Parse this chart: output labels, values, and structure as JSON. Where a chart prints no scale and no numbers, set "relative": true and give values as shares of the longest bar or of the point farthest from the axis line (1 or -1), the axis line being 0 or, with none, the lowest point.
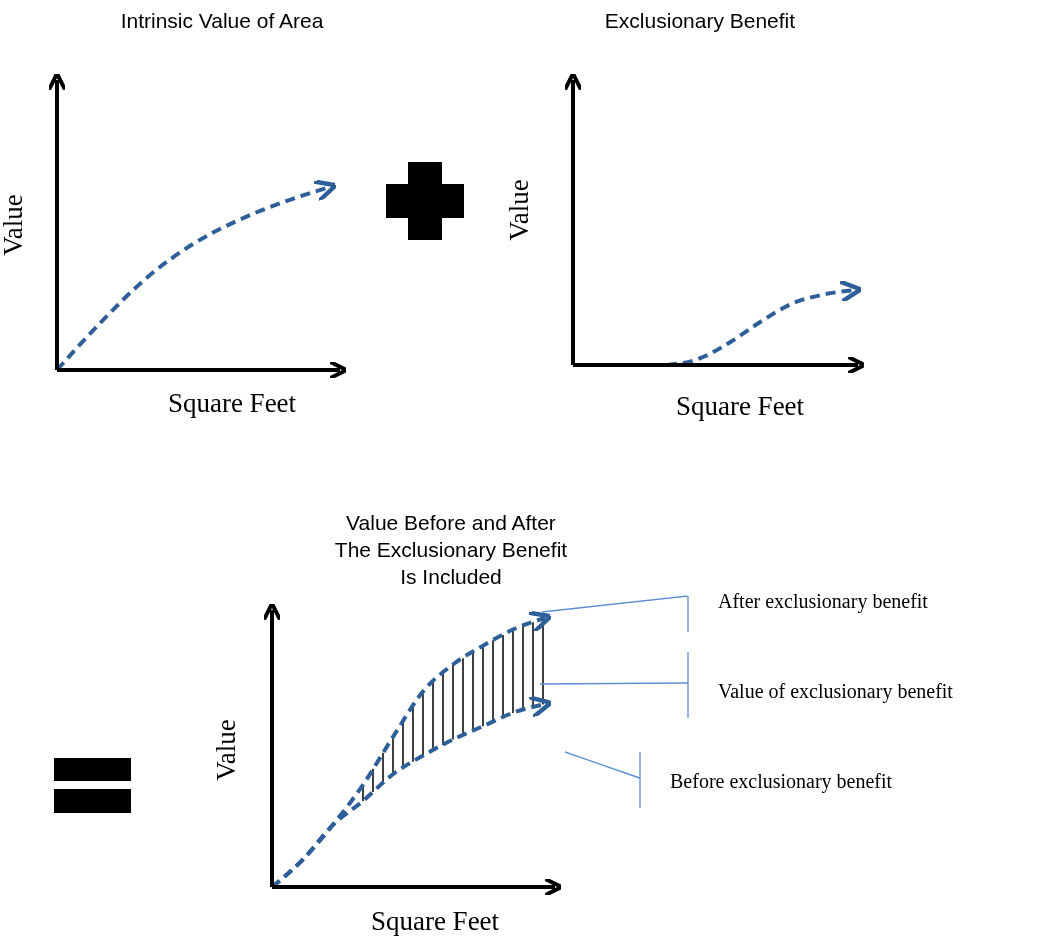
{
  "chart_data": [
    {
      "type": "line",
      "title": "Intrinsic Value of Area",
      "xlabel": "Square Feet",
      "ylabel": "Value",
      "relative": true,
      "line_style": "dashed",
      "marker": "none",
      "categories": [
        null,
        null,
        null,
        null,
        null,
        null,
        null
      ],
      "series": [
        {
          "color": "#2e5f99",
          "values": [
            0,
            0.27,
            0.51,
            0.69,
            0.82,
            0.92,
            1
          ]
        }
      ]
    },
    {
      "type": "line",
      "title": "Exclusionary Benefit",
      "xlabel": "Square Feet",
      "ylabel": "Value",
      "relative": true,
      "line_style": "dashed",
      "marker": "none",
      "categories": [
        null,
        null,
        null,
        null,
        null,
        null,
        null,
        null,
        null,
        null
      ],
      "series": [
        {
          "color": "#2e5f99",
          "values": [
            null,
            null,
            null,
            0,
            0.08,
            0.3,
            0.58,
            0.82,
            0.94,
            1
          ]
        }
      ]
    },
    {
      "type": "line",
      "title": "Value Before and After\nThe Exclusionary Benefit\nIs Included",
      "xlabel": "Square Feet",
      "ylabel": "Value",
      "relative": true,
      "line_style": "dashed",
      "marker": "none",
      "categories": [
        null,
        null,
        null,
        null,
        null,
        null,
        null,
        null,
        null,
        null
      ],
      "annotations": [
        "Value of exclusionary benefit"
      ],
      "series": [
        {
          "name": "After exclusionary benefit",
          "color": "#2e5f99",
          "values": [
            0,
            0.1,
            0.23,
            0.38,
            0.56,
            0.73,
            0.83,
            0.9,
            0.96,
            1
          ]
        },
        {
          "name": "Before exclusionary benefit",
          "color": "#2e5f99",
          "values": [
            0,
            0.1,
            0.23,
            0.32,
            0.42,
            0.49,
            0.55,
            0.6,
            0.65,
            0.68
          ]
        }
      ]
    }
  ]
}
